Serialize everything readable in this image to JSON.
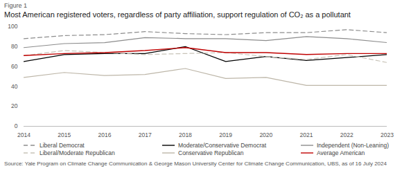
{
  "chart_data": {
    "type": "line",
    "title": "Figure 1",
    "subtitle": "Most American registered voters, regardless of party affiliation, support regulation of CO₂ as a pollutant",
    "caption": "Source: Yale Program on Climate Change Communication & George Mason University Center for Climate Change Communication, UBS, as of 16 July 2024",
    "x": [
      2014,
      2015,
      2016,
      2017,
      2018,
      2019,
      2020,
      2021,
      2022,
      2023
    ],
    "xlim": [
      2014,
      2023
    ],
    "xticks": [
      2014,
      2015,
      2016,
      2017,
      2018,
      2019,
      2020,
      2021,
      2022,
      2023
    ],
    "ylim": [
      0,
      100
    ],
    "yticks": [
      0,
      20,
      40,
      60,
      80,
      100
    ],
    "grid": false,
    "legend": "bottom",
    "series": [
      {
        "name": "Liberal Democrat",
        "color": "#8c8c8c",
        "line_style": "dashed",
        "values": [
          88,
          91,
          92,
          95,
          93,
          92,
          94,
          94,
          97,
          94
        ]
      },
      {
        "name": "Moderate/Conservative Democrat",
        "color": "#000000",
        "line_style": "solid",
        "values": [
          65,
          72,
          73,
          73,
          80,
          65,
          70,
          66,
          69,
          72
        ]
      },
      {
        "name": "Independent (Non-Leaning)",
        "color": "#8c8c8c",
        "line_style": "solid",
        "values": [
          79,
          83,
          84,
          89,
          88,
          88,
          86,
          90,
          88,
          84
        ]
      },
      {
        "name": "Liberal/Moderate Republican",
        "color": "#c8c3b8",
        "line_style": "dashed",
        "values": [
          71,
          76,
          74,
          72,
          73,
          74,
          70,
          67,
          72,
          64
        ]
      },
      {
        "name": "Conservative Republican",
        "color": "#bdb6a8",
        "line_style": "solid",
        "values": [
          49,
          54,
          51,
          52,
          58,
          48,
          49,
          41,
          41,
          41
        ]
      },
      {
        "name": "Average American",
        "color": "#c00000",
        "line_style": "solid",
        "values": [
          71,
          73,
          74,
          76,
          79,
          74,
          74,
          72,
          73,
          73
        ]
      }
    ]
  }
}
